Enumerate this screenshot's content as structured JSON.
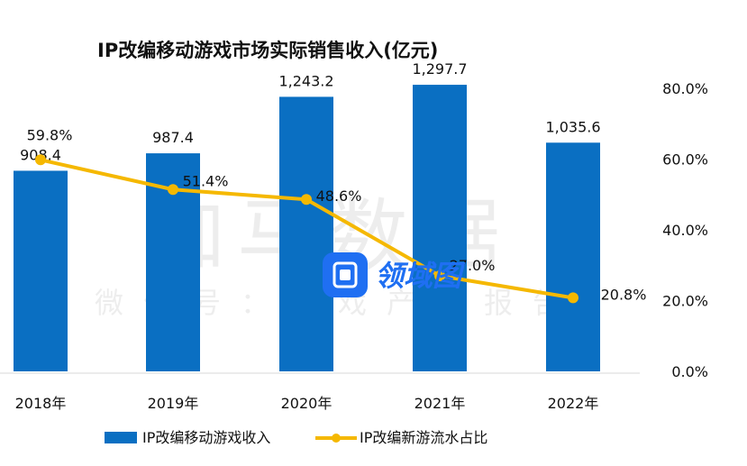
{
  "chart_data": {
    "type": "bar+line",
    "title": "IP改编移动游戏市场实际销售收入(亿元)",
    "categories": [
      "2018年",
      "2019年",
      "2020年",
      "2021年",
      "2022年"
    ],
    "series": [
      {
        "name": "IP改编移动游戏收入",
        "type": "bar",
        "axis": "left",
        "values": [
          908.4,
          987.4,
          1243.2,
          1297.7,
          1035.6
        ],
        "labels": [
          "908.4",
          "987.4",
          "1,243.2",
          "1,297.7",
          "1,035.6"
        ],
        "color": "#0a6fc2"
      },
      {
        "name": "IP改编新游流水占比",
        "type": "line",
        "axis": "right",
        "values": [
          59.8,
          51.4,
          48.6,
          27.0,
          20.8
        ],
        "labels": [
          "59.8%",
          "51.4%",
          "48.6%",
          "27.0%",
          "20.8%"
        ],
        "color": "#f5b800"
      }
    ],
    "left_ylim": [
      0,
      1600
    ],
    "right_ylim": [
      0,
      80
    ],
    "right_ticks": [
      "0.0%",
      "20.0%",
      "40.0%",
      "60.0%",
      "80.0%"
    ],
    "legend_position": "bottom",
    "grid": false
  },
  "watermark": {
    "main": "伽马数据",
    "sub": "微信号：游戏产业报告",
    "badge": "领域图"
  }
}
